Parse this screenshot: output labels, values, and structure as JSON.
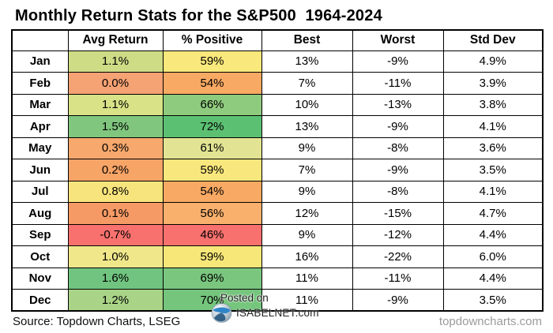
{
  "title": "Monthly Return Stats for the S&P500  1964-2024",
  "chart_data": {
    "type": "table",
    "title": "Monthly Return Stats for the S&P500  1964-2024",
    "columns": [
      "",
      "Avg Return",
      "% Positive",
      "Best",
      "Worst",
      "Std Dev"
    ],
    "heatmap_columns": [
      "Avg Return",
      "% Positive"
    ],
    "rows": [
      {
        "month": "Jan",
        "avg_return": "1.1%",
        "pct_positive": "59%",
        "best": "13%",
        "worst": "-9%",
        "std_dev": "4.9%",
        "avg_return_color": "#cedc85",
        "pct_positive_color": "#f9e87b"
      },
      {
        "month": "Feb",
        "avg_return": "0.0%",
        "pct_positive": "54%",
        "best": "7%",
        "worst": "-11%",
        "std_dev": "3.9%",
        "avg_return_color": "#f5a274",
        "pct_positive_color": "#f8a963"
      },
      {
        "month": "Mar",
        "avg_return": "1.1%",
        "pct_positive": "66%",
        "best": "10%",
        "worst": "-13%",
        "std_dev": "3.8%",
        "avg_return_color": "#d9e287",
        "pct_positive_color": "#8fcb7e"
      },
      {
        "month": "Apr",
        "avg_return": "1.5%",
        "pct_positive": "72%",
        "best": "13%",
        "worst": "-9%",
        "std_dev": "4.1%",
        "avg_return_color": "#80c67e",
        "pct_positive_color": "#5cc072"
      },
      {
        "month": "May",
        "avg_return": "0.3%",
        "pct_positive": "61%",
        "best": "9%",
        "worst": "-8%",
        "std_dev": "3.6%",
        "avg_return_color": "#f7a86d",
        "pct_positive_color": "#e2e493"
      },
      {
        "month": "Jun",
        "avg_return": "0.2%",
        "pct_positive": "59%",
        "best": "7%",
        "worst": "-9%",
        "std_dev": "3.5%",
        "avg_return_color": "#f7a467",
        "pct_positive_color": "#f8e77c"
      },
      {
        "month": "Jul",
        "avg_return": "0.8%",
        "pct_positive": "54%",
        "best": "9%",
        "worst": "-8%",
        "std_dev": "4.1%",
        "avg_return_color": "#f8e47d",
        "pct_positive_color": "#f8a963"
      },
      {
        "month": "Aug",
        "avg_return": "0.1%",
        "pct_positive": "56%",
        "best": "12%",
        "worst": "-15%",
        "std_dev": "4.7%",
        "avg_return_color": "#f69a65",
        "pct_positive_color": "#f9b06d"
      },
      {
        "month": "Sep",
        "avg_return": "-0.7%",
        "pct_positive": "46%",
        "best": "9%",
        "worst": "-12%",
        "std_dev": "4.4%",
        "avg_return_color": "#f8716e",
        "pct_positive_color": "#f8716e"
      },
      {
        "month": "Oct",
        "avg_return": "1.0%",
        "pct_positive": "59%",
        "best": "16%",
        "worst": "-22%",
        "std_dev": "6.0%",
        "avg_return_color": "#f0e78b",
        "pct_positive_color": "#f7e779"
      },
      {
        "month": "Nov",
        "avg_return": "1.6%",
        "pct_positive": "69%",
        "best": "11%",
        "worst": "-11%",
        "std_dev": "4.4%",
        "avg_return_color": "#70c47f",
        "pct_positive_color": "#7ac67f"
      },
      {
        "month": "Dec",
        "avg_return": "1.2%",
        "pct_positive": "70%",
        "best": "11%",
        "worst": "-9%",
        "std_dev": "3.5%",
        "avg_return_color": "#a9d487",
        "pct_positive_color": "#75c57d"
      }
    ]
  },
  "watermark": {
    "posted_on": "Posted on",
    "site": "ISABELNET.com"
  },
  "footer": {
    "source": "Source: Topdown Charts, LSEG",
    "website": "topdowncharts.com"
  },
  "colors": {
    "grid_border": "#000000",
    "footer_site_gray": "#9b9b9b",
    "logo_blue": "#2e86c9",
    "logo_navy": "#1b4f7a",
    "logo_silver": "#c8d2da"
  }
}
